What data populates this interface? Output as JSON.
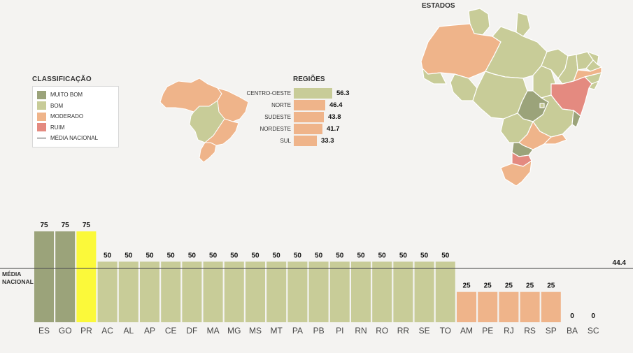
{
  "legend": {
    "title": "CLASSIFICAÇÃO",
    "items": [
      {
        "label": "MUITO BOM",
        "color": "#9ba37a"
      },
      {
        "label": "BOM",
        "color": "#c8cc98"
      },
      {
        "label": "MODERADO",
        "color": "#efb48a"
      },
      {
        "label": "RUIM",
        "color": "#e48a80"
      }
    ],
    "line_label": "MÉDIA NACIONAL"
  },
  "regions": {
    "title": "REGIÕES",
    "items": [
      {
        "name": "CENTRO-OESTE",
        "value": "56.3",
        "v": 56.3,
        "color": "#c8cc98"
      },
      {
        "name": "NORTE",
        "value": "46.4",
        "v": 46.4,
        "color": "#efb48a"
      },
      {
        "name": "SUDESTE",
        "value": "43.8",
        "v": 43.8,
        "color": "#efb48a"
      },
      {
        "name": "NORDESTE",
        "value": "41.7",
        "v": 41.7,
        "color": "#efb48a"
      },
      {
        "name": "SUL",
        "value": "33.3",
        "v": 33.3,
        "color": "#efb48a"
      }
    ]
  },
  "states_map": {
    "title": "ESTADOS"
  },
  "chart_data": {
    "type": "bar",
    "categories": [
      "ES",
      "GO",
      "PR",
      "AC",
      "AL",
      "AP",
      "CE",
      "DF",
      "MA",
      "MG",
      "MS",
      "MT",
      "PA",
      "PB",
      "PI",
      "RN",
      "RO",
      "RR",
      "SE",
      "TO",
      "AM",
      "PE",
      "RJ",
      "RS",
      "SP",
      "BA",
      "SC"
    ],
    "values": [
      75,
      75,
      75,
      50,
      50,
      50,
      50,
      50,
      50,
      50,
      50,
      50,
      50,
      50,
      50,
      50,
      50,
      50,
      50,
      50,
      25,
      25,
      25,
      25,
      25,
      0,
      0
    ],
    "colors": [
      "#9ba37a",
      "#9ba37a",
      "#fbf93a",
      "#c8cc98",
      "#c8cc98",
      "#c8cc98",
      "#c8cc98",
      "#c8cc98",
      "#c8cc98",
      "#c8cc98",
      "#c8cc98",
      "#c8cc98",
      "#c8cc98",
      "#c8cc98",
      "#c8cc98",
      "#c8cc98",
      "#c8cc98",
      "#c8cc98",
      "#c8cc98",
      "#c8cc98",
      "#efb48a",
      "#efb48a",
      "#efb48a",
      "#efb48a",
      "#efb48a",
      "#efb48a",
      "#efb48a"
    ],
    "reference_line": {
      "label_line1": "MÉDIA",
      "label_line2": "NACIONAL",
      "value": 44.4,
      "value_label": "44.4"
    },
    "ylim": [
      0,
      75
    ]
  }
}
